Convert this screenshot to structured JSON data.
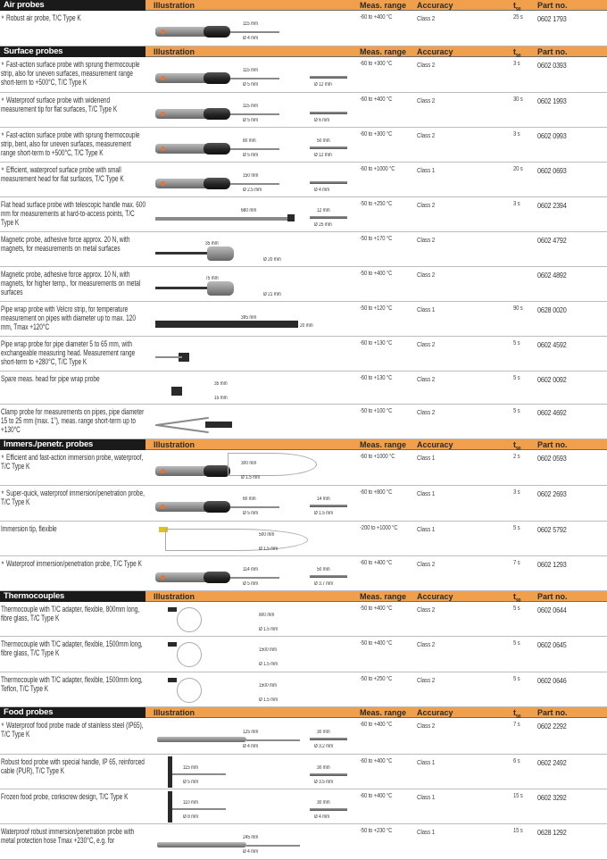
{
  "columns": {
    "illustration": "Illustration",
    "range": "Meas. range",
    "accuracy": "Accuracy",
    "t": "t",
    "t_sub": "90",
    "part": "Part no."
  },
  "star": "★",
  "sections": [
    {
      "title": "Air probes",
      "rows": [
        {
          "star": true,
          "desc": "Robust air probe, T/C Type K",
          "range": "-60 to +400 °C",
          "accuracy": "Class 2",
          "t90": "25 s",
          "part": "0602 1793",
          "kind": "handle",
          "dims": [
            "115 mm",
            "Ø 4 mm"
          ],
          "tipdims": []
        }
      ]
    },
    {
      "title": "Surface probes",
      "rows": [
        {
          "star": true,
          "desc": "Fast-action surface probe with sprung thermocouple strip, also for uneven surfaces, measurement range short-term to +500°C, T/C Type K",
          "range": "-60 to +300 °C",
          "accuracy": "Class 2",
          "t90": "3 s",
          "part": "0602 0393",
          "kind": "handle",
          "dims": [
            "115 mm",
            "Ø 5 mm"
          ],
          "tipdims": [
            "",
            "Ø 12 mm"
          ]
        },
        {
          "star": true,
          "desc": "Waterproof surface probe with widenend measurement tip for flat surfaces, T/C Type K",
          "range": "-60 to +400 °C",
          "accuracy": "Class 2",
          "t90": "30 s",
          "part": "0602 1993",
          "kind": "handle",
          "dims": [
            "115 mm",
            "Ø 5 mm"
          ],
          "tipdims": [
            "",
            "Ø 6 mm"
          ]
        },
        {
          "star": true,
          "desc": "Fast-action surface probe with sprung thermocouple strip, bent, also for uneven surfaces, measurement range short-term to +500°C, T/C Type K",
          "range": "-60 to +300 °C",
          "accuracy": "Class 2",
          "t90": "3 s",
          "part": "0602 0993",
          "kind": "handle",
          "dims": [
            "80 mm",
            "Ø 5 mm"
          ],
          "tipdims": [
            "50 mm",
            "Ø 12 mm"
          ]
        },
        {
          "star": true,
          "desc": "Efficient, waterproof surface probe with small measurement head for flat surfaces, T/C Type K",
          "range": "-60 to +1000 °C",
          "accuracy": "Class 1",
          "t90": "20 s",
          "part": "0602 0693",
          "kind": "handle",
          "dims": [
            "150 mm",
            "Ø 2.5 mm"
          ],
          "tipdims": [
            "",
            "Ø 4 mm"
          ]
        },
        {
          "star": false,
          "desc": "Flat head surface probe with telescopic handle max. 600 mm for measurements at hard-to-access points, T/C Type K",
          "range": "-50 to +250 °C",
          "accuracy": "Class 2",
          "t90": "3 s",
          "part": "0602 2394",
          "kind": "rod",
          "dims": [
            "680 mm",
            ""
          ],
          "tipdims": [
            "12 mm",
            "Ø 25 mm"
          ]
        },
        {
          "star": false,
          "desc": "Magnetic probe, adhesive force approx. 20 N, with magnets, for measurements on metal surfaces",
          "range": "-50 to +170 °C",
          "accuracy": "Class 2",
          "t90": "",
          "part": "0602 4792",
          "kind": "magnet",
          "dims": [
            "35 mm",
            "Ø 20 mm"
          ],
          "tipdims": []
        },
        {
          "star": false,
          "desc": "Magnetic probe, adhesive force approx. 10 N, with magnets, for higher temp., for measurements on metal surfaces",
          "range": "-50 to +400 °C",
          "accuracy": "Class 2",
          "t90": "",
          "part": "0602 4892",
          "kind": "magnet",
          "dims": [
            "75 mm",
            "Ø 21 mm"
          ],
          "tipdims": []
        },
        {
          "star": false,
          "desc": "Pipe wrap probe with Velcro strip, for temperature measurement on pipes with diameter up to max. 120 mm, Tmax +120°C",
          "range": "-50 to +120 °C",
          "accuracy": "Class 1",
          "t90": "90 s",
          "part": "0628 0020",
          "kind": "strip",
          "dims": [
            "395 mm",
            "20 mm"
          ],
          "tipdims": []
        },
        {
          "star": false,
          "desc": "Pipe wrap probe for pipe diameter 5 to 65 mm, with exchangeable measuring head. Measurement range short-term to +280°C, T/C Type K",
          "range": "-60 to +130 °C",
          "accuracy": "Class 2",
          "t90": "5 s",
          "part": "0602 4592",
          "kind": "wrap",
          "dims": [],
          "tipdims": []
        },
        {
          "star": false,
          "desc": "Spare meas. head for pipe wrap probe",
          "range": "-60 to +130 °C",
          "accuracy": "Class 2",
          "t90": "5 s",
          "part": "0602 0092",
          "kind": "head",
          "dims": [
            "35 mm",
            "15 mm"
          ],
          "tipdims": []
        },
        {
          "star": false,
          "desc": "Clamp probe for measurements on pipes, pipe diameter 15 to 25 mm (max. 1\"), meas. range short-term up to +130°C",
          "range": "-50 to +100 °C",
          "accuracy": "Class 2",
          "t90": "5 s",
          "part": "0602 4692",
          "kind": "clamp",
          "dims": [],
          "tipdims": []
        }
      ]
    },
    {
      "title": "Immers./penetr. probes",
      "rows": [
        {
          "star": true,
          "desc": "Efficient and fast-action immersion probe, waterproof, T/C Type K",
          "range": "-60 to +1000 °C",
          "accuracy": "Class 1",
          "t90": "2 s",
          "part": "0602 0593",
          "kind": "loop",
          "dims": [
            "300 mm",
            "Ø 1.5 mm"
          ],
          "tipdims": []
        },
        {
          "star": true,
          "desc": "Super-quick, waterproof immersion/penetration probe, T/C Type K",
          "range": "-60 to +800 °C",
          "accuracy": "Class 1",
          "t90": "3 s",
          "part": "0602 2693",
          "kind": "handle",
          "dims": [
            "60 mm",
            "Ø 5 mm"
          ],
          "tipdims": [
            "14 mm",
            "Ø 1.5 mm"
          ]
        },
        {
          "star": false,
          "desc": "Immersion tip, flexible",
          "range": "-200 to +1000 °C",
          "accuracy": "Class 1",
          "t90": "5 s",
          "part": "0602 5792",
          "kind": "flex",
          "dims": [
            "500 mm",
            "Ø 1.5 mm"
          ],
          "tipdims": []
        },
        {
          "star": true,
          "desc": "Waterproof immersion/penetration probe, T/C Type K",
          "range": "-60 to +400 °C",
          "accuracy": "Class 2",
          "t90": "7 s",
          "part": "0602 1293",
          "kind": "handle",
          "dims": [
            "114 mm",
            "Ø 5 mm"
          ],
          "tipdims": [
            "50 mm",
            "Ø 3.7 mm"
          ]
        }
      ]
    },
    {
      "title": "Thermocouples",
      "rows": [
        {
          "star": false,
          "desc": "Thermocouple with T/C adapter, flexible, 800mm long, fibre glass, T/C Type K",
          "range": "-50 to +400 °C",
          "accuracy": "Class 2",
          "t90": "5 s",
          "part": "0602 0644",
          "kind": "coil",
          "dims": [
            "800 mm",
            "Ø 1.5 mm"
          ],
          "tipdims": []
        },
        {
          "star": false,
          "desc": "Thermocouple with T/C adapter, flexible, 1500mm long, fibre glass, T/C Type K",
          "range": "-50 to +400 °C",
          "accuracy": "Class 2",
          "t90": "5 s",
          "part": "0602 0645",
          "kind": "coil",
          "dims": [
            "1500 mm",
            "Ø 1.5 mm"
          ],
          "tipdims": []
        },
        {
          "star": false,
          "desc": "Thermocouple with T/C adapter, flexible, 1500mm long, Teflon, T/C Type K",
          "range": "-50 to +250 °C",
          "accuracy": "Class 2",
          "t90": "5 s",
          "part": "0602 0646",
          "kind": "coil",
          "dims": [
            "1500 mm",
            "Ø 1.5 mm"
          ],
          "tipdims": []
        }
      ]
    },
    {
      "title": "Food probes",
      "rows": [
        {
          "star": true,
          "desc": "Waterproof food probe made of stainless steel (IP65), T/C Type K",
          "range": "-60 to +400 °C",
          "accuracy": "Class 2",
          "t90": "7 s",
          "part": "0602 2292",
          "kind": "steel",
          "dims": [
            "125 mm",
            "Ø 4 mm"
          ],
          "tipdims": [
            "30 mm",
            "Ø 3.2 mm"
          ]
        },
        {
          "star": false,
          "desc": "Robust food probe with special handle, IP 65, reinforced cable (PUR), T/C Type K",
          "range": "-60 to +400 °C",
          "accuracy": "Class 1",
          "t90": "6 s",
          "part": "0602 2492",
          "kind": "tee",
          "dims": [
            "115 mm",
            "Ø 5 mm"
          ],
          "tipdims": [
            "30 mm",
            "Ø 3.5 mm"
          ]
        },
        {
          "star": false,
          "desc": "Frozen food probe, corkscrew design, T/C Type K",
          "range": "-60 to +400 °C",
          "accuracy": "Class 1",
          "t90": "15 s",
          "part": "0602 3292",
          "kind": "tee",
          "dims": [
            "110 mm",
            "Ø 8 mm"
          ],
          "tipdims": [
            "30 mm",
            "Ø 4 mm"
          ]
        },
        {
          "star": false,
          "desc": "Waterproof robust immersion/penetration probe with metal protection hose Tmax +230°C, e.g. for",
          "range": "-50 to +230 °C",
          "accuracy": "Class 1",
          "t90": "15 s",
          "part": "0628 1292",
          "kind": "steel",
          "dims": [
            "245 mm",
            "Ø 4 mm"
          ],
          "tipdims": []
        }
      ]
    }
  ]
}
